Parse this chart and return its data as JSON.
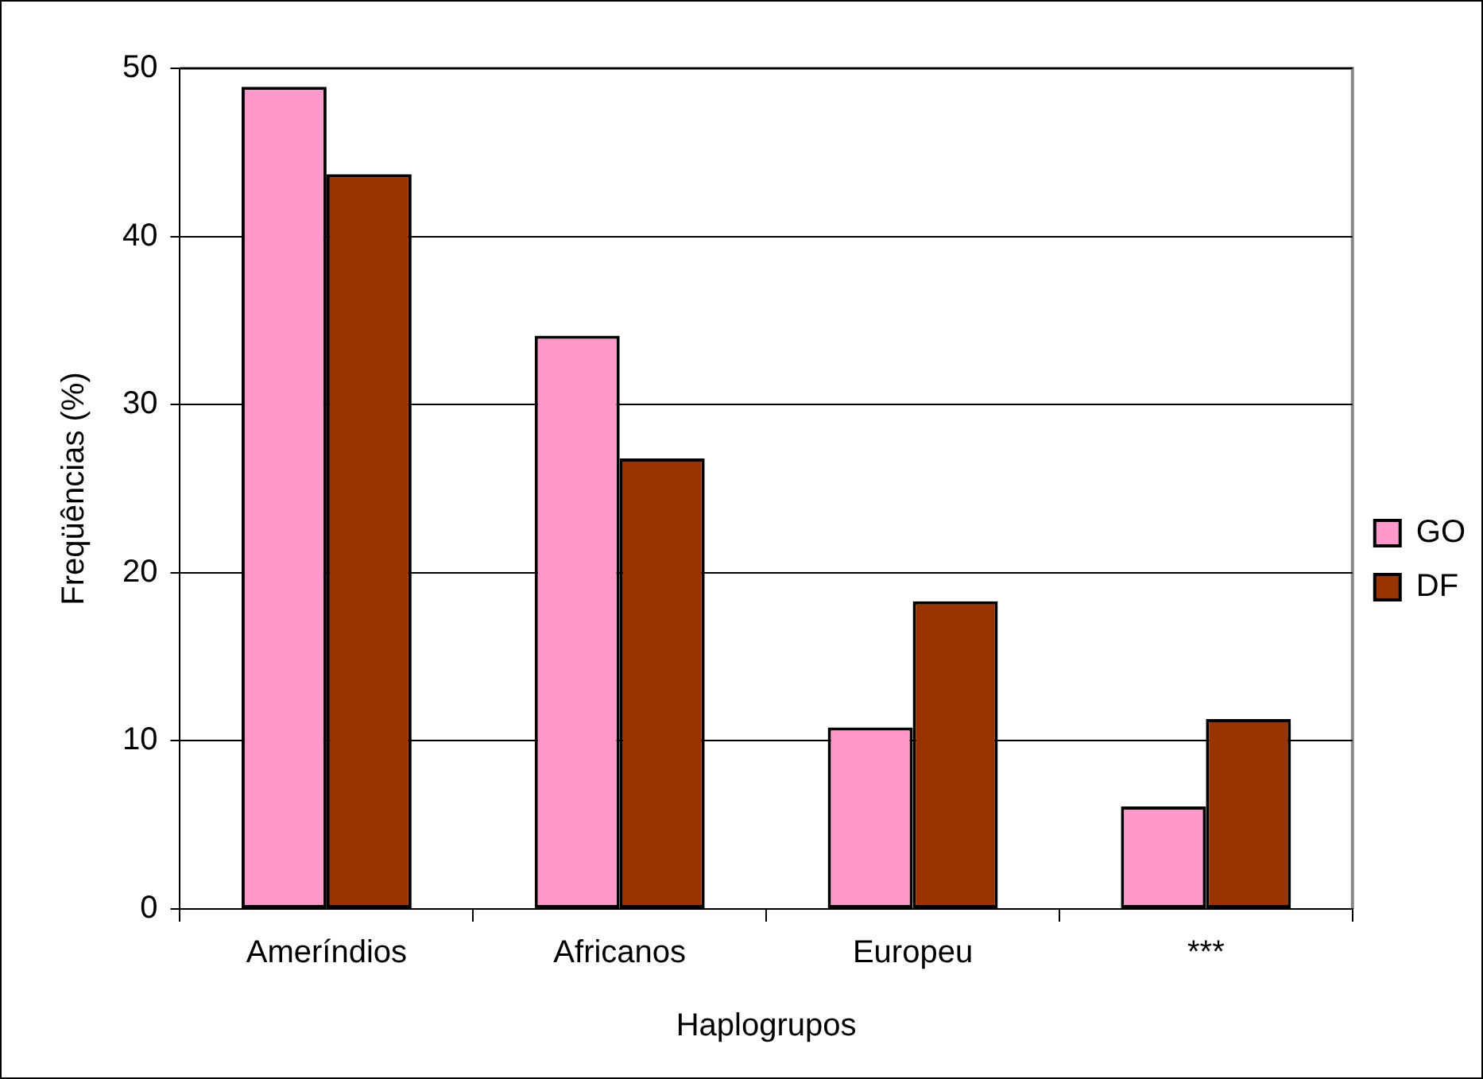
{
  "chart_data": {
    "type": "bar",
    "xlabel": "Haplogrupos",
    "ylabel": "Freqüências (%)",
    "categories": [
      "Ameríndios",
      "Africanos",
      "Europeu",
      "***"
    ],
    "series": [
      {
        "name": "GO",
        "color": "#ff99cc",
        "values": [
          48.9,
          34.1,
          10.8,
          6.1
        ]
      },
      {
        "name": "DF",
        "color": "#993300",
        "values": [
          43.7,
          26.8,
          18.3,
          11.3
        ]
      }
    ],
    "ylim": [
      0,
      50
    ],
    "yticks": [
      0,
      10,
      20,
      30,
      40,
      50
    ],
    "grid": "y",
    "legend": "right"
  }
}
